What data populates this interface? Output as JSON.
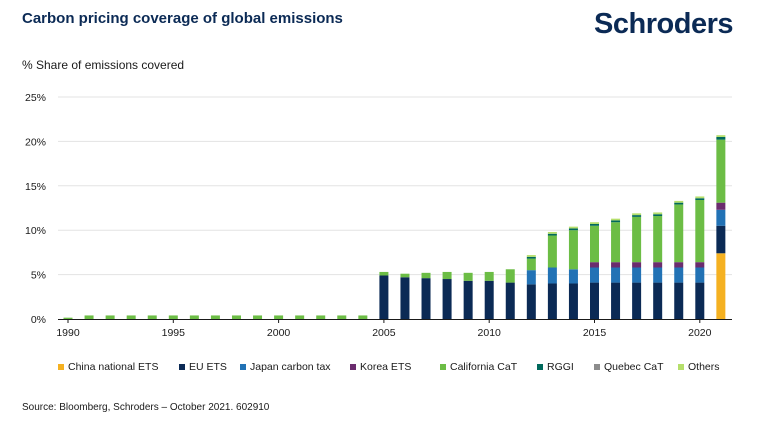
{
  "header": {
    "title": "Carbon pricing coverage of global emissions",
    "brand": "Schroders"
  },
  "footer": {
    "source": "Source: Bloomberg, Schroders – October 2021. 602910"
  },
  "chart_data": {
    "type": "bar",
    "stacked": true,
    "ylabel": "% Share of emissions covered",
    "ylim": [
      0,
      25
    ],
    "yticks": [
      0,
      5,
      10,
      15,
      20,
      25
    ],
    "ytick_labels": [
      "0%",
      "5%",
      "10%",
      "15%",
      "20%",
      "25%"
    ],
    "xticks": [
      1990,
      1995,
      2000,
      2005,
      2010,
      2015,
      2020
    ],
    "grid": true,
    "legend_position": "bottom",
    "categories": [
      1990,
      1991,
      1992,
      1993,
      1994,
      1995,
      1996,
      1997,
      1998,
      1999,
      2000,
      2001,
      2002,
      2003,
      2004,
      2005,
      2006,
      2007,
      2008,
      2009,
      2010,
      2011,
      2012,
      2013,
      2014,
      2015,
      2016,
      2017,
      2018,
      2019,
      2020,
      2021
    ],
    "series": [
      {
        "name": "China national ETS",
        "color": "#f5b121",
        "values": [
          0,
          0,
          0,
          0,
          0,
          0,
          0,
          0,
          0,
          0,
          0,
          0,
          0,
          0,
          0,
          0,
          0,
          0,
          0,
          0,
          0,
          0,
          0,
          0,
          0,
          0,
          0,
          0,
          0,
          0,
          0,
          7.4
        ]
      },
      {
        "name": "EU ETS",
        "color": "#0b2a55",
        "values": [
          0,
          0,
          0,
          0,
          0,
          0,
          0,
          0,
          0,
          0,
          0,
          0,
          0,
          0,
          0,
          4.9,
          4.7,
          4.6,
          4.5,
          4.3,
          4.3,
          4.1,
          3.9,
          4.0,
          4.0,
          4.1,
          4.1,
          4.1,
          4.1,
          4.1,
          4.1,
          3.1
        ]
      },
      {
        "name": "Japan carbon tax",
        "color": "#2272b5",
        "values": [
          0,
          0,
          0,
          0,
          0,
          0,
          0,
          0,
          0,
          0,
          0,
          0,
          0,
          0,
          0,
          0,
          0,
          0,
          0,
          0,
          0,
          0,
          1.6,
          1.8,
          1.6,
          1.7,
          1.7,
          1.7,
          1.7,
          1.7,
          1.7,
          1.8
        ]
      },
      {
        "name": "Korea ETS",
        "color": "#6b2c6e",
        "values": [
          0,
          0,
          0,
          0,
          0,
          0,
          0,
          0,
          0,
          0,
          0,
          0,
          0,
          0,
          0,
          0,
          0,
          0,
          0,
          0,
          0,
          0,
          0,
          0,
          0,
          0.6,
          0.6,
          0.6,
          0.6,
          0.6,
          0.6,
          0.8
        ]
      },
      {
        "name": "California CaT",
        "color": "#6cbd45",
        "values": [
          0.15,
          0.4,
          0.4,
          0.4,
          0.4,
          0.4,
          0.4,
          0.4,
          0.4,
          0.4,
          0.4,
          0.4,
          0.4,
          0.4,
          0.4,
          0.4,
          0.4,
          0.6,
          0.8,
          0.9,
          1.0,
          1.5,
          1.3,
          3.6,
          4.4,
          4.1,
          4.5,
          5.1,
          5.2,
          6.5,
          7.0,
          7.1
        ]
      },
      {
        "name": "RGGI",
        "color": "#00695c",
        "values": [
          0,
          0,
          0,
          0,
          0,
          0,
          0,
          0,
          0,
          0,
          0,
          0,
          0,
          0,
          0,
          0,
          0,
          0,
          0,
          0,
          0,
          0,
          0.2,
          0.2,
          0.2,
          0.2,
          0.2,
          0.2,
          0.2,
          0.2,
          0.2,
          0.3
        ]
      },
      {
        "name": "Quebec CaT",
        "color": "#8c8c8c",
        "values": [
          0,
          0,
          0,
          0,
          0,
          0,
          0,
          0,
          0,
          0,
          0,
          0,
          0,
          0,
          0,
          0,
          0,
          0,
          0,
          0,
          0,
          0,
          0,
          0,
          0,
          0,
          0,
          0,
          0,
          0,
          0,
          0
        ]
      },
      {
        "name": "Others",
        "color": "#b5df6b",
        "values": [
          0,
          0,
          0,
          0,
          0,
          0,
          0,
          0,
          0,
          0,
          0,
          0,
          0,
          0,
          0,
          0,
          0,
          0,
          0,
          0,
          0,
          0,
          0.2,
          0.2,
          0.2,
          0.2,
          0.2,
          0.2,
          0.2,
          0.2,
          0.2,
          0.2
        ]
      }
    ]
  }
}
